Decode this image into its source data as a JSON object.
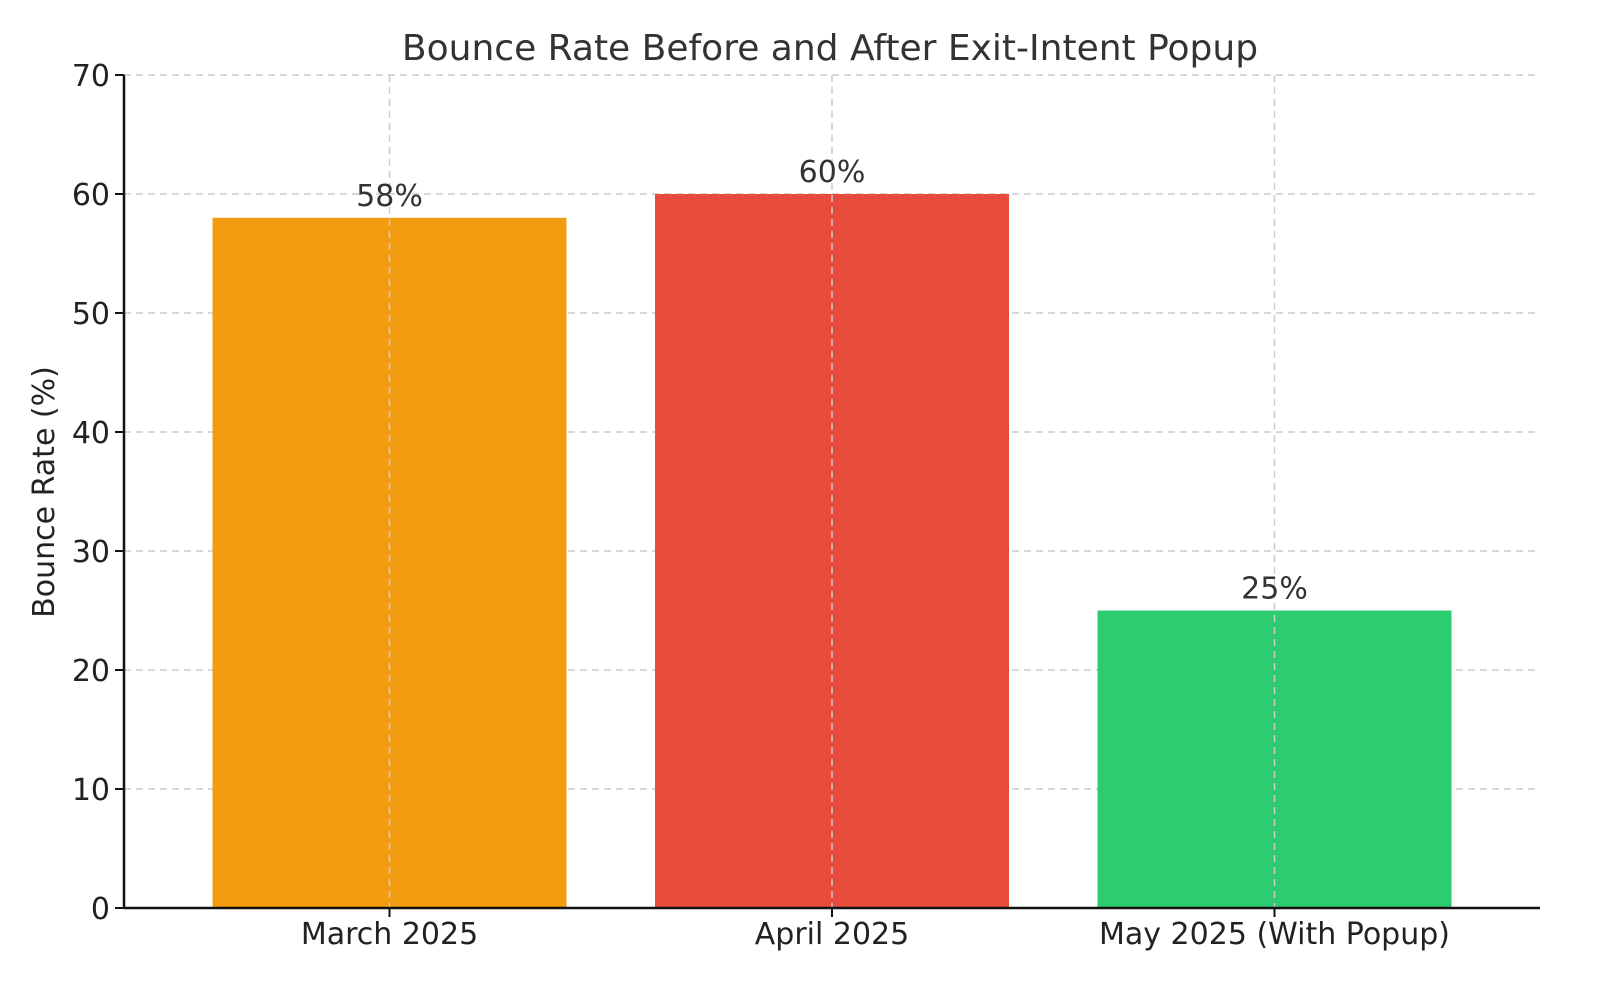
{
  "chart_data": {
    "type": "bar",
    "title": "Bounce Rate Before and After Exit-Intent Popup",
    "xlabel": "",
    "ylabel": "Bounce Rate (%)",
    "categories": [
      "March 2025",
      "April 2025",
      "May 2025 (With Popup)"
    ],
    "values": [
      58,
      60,
      25
    ],
    "value_labels": [
      "58%",
      "60%",
      "25%"
    ],
    "colors": [
      "#f39c12",
      "#e74c3c",
      "#2ecc71"
    ],
    "ylim": [
      0,
      70
    ],
    "yticks": [
      0,
      10,
      20,
      30,
      40,
      50,
      60,
      70
    ],
    "grid": true,
    "legend": "none"
  }
}
